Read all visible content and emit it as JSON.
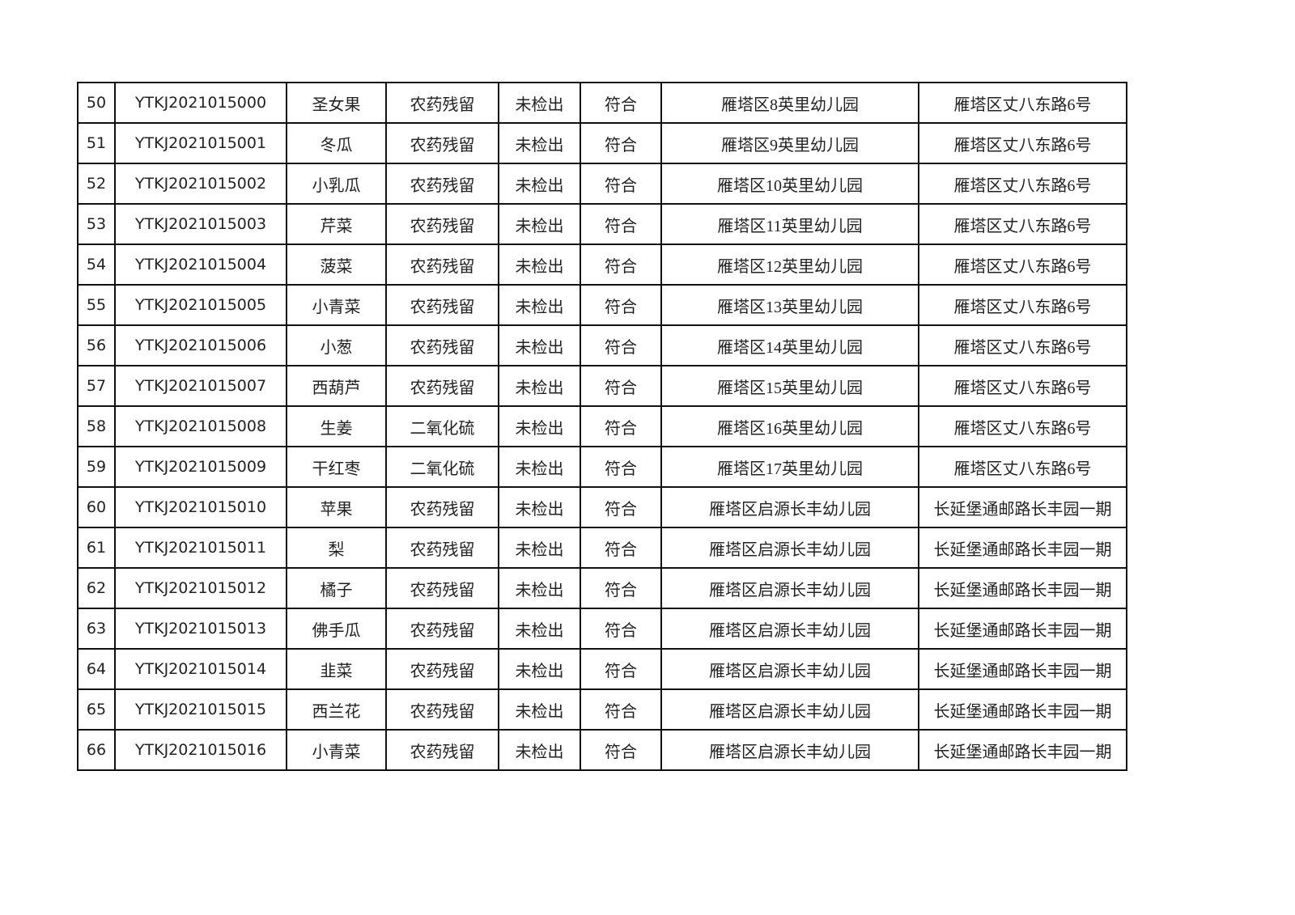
{
  "table": {
    "rows": [
      [
        "50",
        "YTKJ2021015000",
        "圣女果",
        "农药残留",
        "未检出",
        "符合",
        "雁塔区8英里幼儿园",
        "雁塔区丈八东路6号"
      ],
      [
        "51",
        "YTKJ2021015001",
        "冬瓜",
        "农药残留",
        "未检出",
        "符合",
        "雁塔区9英里幼儿园",
        "雁塔区丈八东路6号"
      ],
      [
        "52",
        "YTKJ2021015002",
        "小乳瓜",
        "农药残留",
        "未检出",
        "符合",
        "雁塔区10英里幼儿园",
        "雁塔区丈八东路6号"
      ],
      [
        "53",
        "YTKJ2021015003",
        "芹菜",
        "农药残留",
        "未检出",
        "符合",
        "雁塔区11英里幼儿园",
        "雁塔区丈八东路6号"
      ],
      [
        "54",
        "YTKJ2021015004",
        "菠菜",
        "农药残留",
        "未检出",
        "符合",
        "雁塔区12英里幼儿园",
        "雁塔区丈八东路6号"
      ],
      [
        "55",
        "YTKJ2021015005",
        "小青菜",
        "农药残留",
        "未检出",
        "符合",
        "雁塔区13英里幼儿园",
        "雁塔区丈八东路6号"
      ],
      [
        "56",
        "YTKJ2021015006",
        "小葱",
        "农药残留",
        "未检出",
        "符合",
        "雁塔区14英里幼儿园",
        "雁塔区丈八东路6号"
      ],
      [
        "57",
        "YTKJ2021015007",
        "西葫芦",
        "农药残留",
        "未检出",
        "符合",
        "雁塔区15英里幼儿园",
        "雁塔区丈八东路6号"
      ],
      [
        "58",
        "YTKJ2021015008",
        "生姜",
        "二氧化硫",
        "未检出",
        "符合",
        "雁塔区16英里幼儿园",
        "雁塔区丈八东路6号"
      ],
      [
        "59",
        "YTKJ2021015009",
        "干红枣",
        "二氧化硫",
        "未检出",
        "符合",
        "雁塔区17英里幼儿园",
        "雁塔区丈八东路6号"
      ],
      [
        "60",
        "YTKJ2021015010",
        "苹果",
        "农药残留",
        "未检出",
        "符合",
        "雁塔区启源长丰幼儿园",
        "长延堡通邮路长丰园一期"
      ],
      [
        "61",
        "YTKJ2021015011",
        "梨",
        "农药残留",
        "未检出",
        "符合",
        "雁塔区启源长丰幼儿园",
        "长延堡通邮路长丰园一期"
      ],
      [
        "62",
        "YTKJ2021015012",
        "橘子",
        "农药残留",
        "未检出",
        "符合",
        "雁塔区启源长丰幼儿园",
        "长延堡通邮路长丰园一期"
      ],
      [
        "63",
        "YTKJ2021015013",
        "佛手瓜",
        "农药残留",
        "未检出",
        "符合",
        "雁塔区启源长丰幼儿园",
        "长延堡通邮路长丰园一期"
      ],
      [
        "64",
        "YTKJ2021015014",
        "韭菜",
        "农药残留",
        "未检出",
        "符合",
        "雁塔区启源长丰幼儿园",
        "长延堡通邮路长丰园一期"
      ],
      [
        "65",
        "YTKJ2021015015",
        "西兰花",
        "农药残留",
        "未检出",
        "符合",
        "雁塔区启源长丰幼儿园",
        "长延堡通邮路长丰园一期"
      ],
      [
        "66",
        "YTKJ2021015016",
        "小青菜",
        "农药残留",
        "未检出",
        "符合",
        "雁塔区启源长丰幼儿园",
        "长延堡通邮路长丰园一期"
      ]
    ]
  }
}
